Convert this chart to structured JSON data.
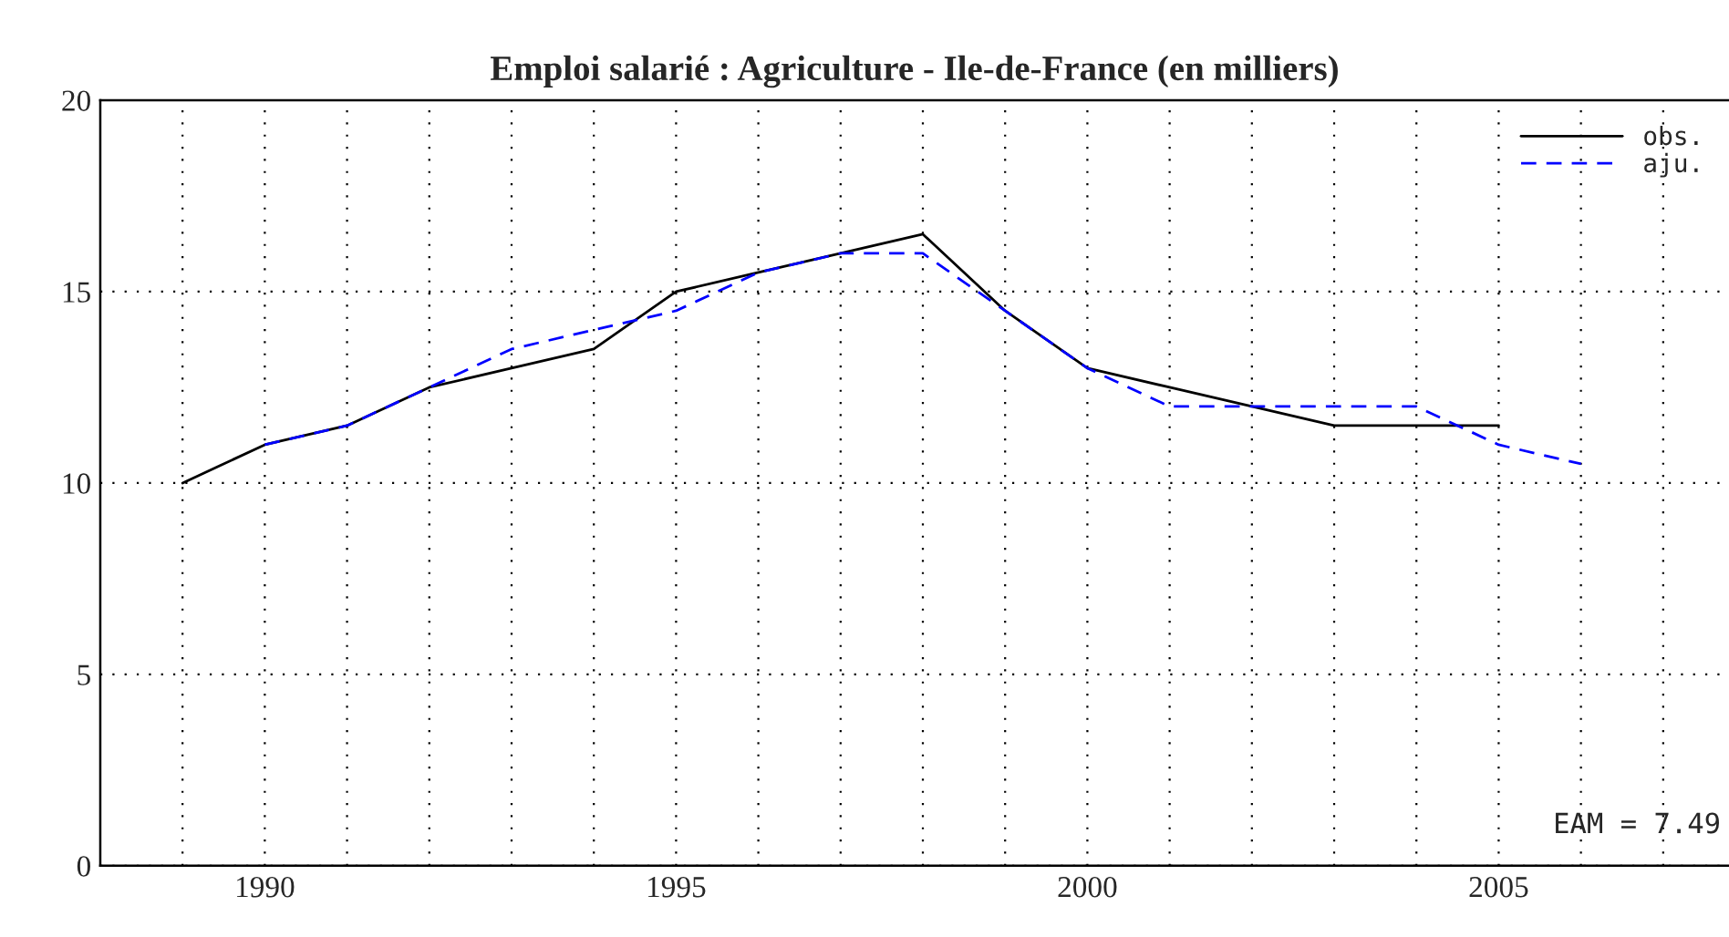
{
  "chart_data": {
    "type": "line",
    "title": "Emploi salarié : Agriculture - Ile-de-France (en milliers)",
    "series": [
      {
        "name": "obs.",
        "color": "#000000",
        "line_style": "solid",
        "x": [
          1989,
          1990,
          1991,
          1992,
          1993,
          1994,
          1995,
          1996,
          1997,
          1998,
          1999,
          2000,
          2001,
          2002,
          2003,
          2004,
          2005
        ],
        "values": [
          10,
          11,
          11.5,
          12.5,
          13,
          13.5,
          15,
          15.5,
          16,
          16.5,
          14.5,
          13,
          12.5,
          12,
          11.5,
          11.5,
          11.5
        ]
      },
      {
        "name": "aju.",
        "color": "#0000ff",
        "line_style": "dashed",
        "x": [
          1990,
          1991,
          1992,
          1993,
          1994,
          1995,
          1996,
          1997,
          1998,
          1999,
          2000,
          2001,
          2002,
          2003,
          2004,
          2005,
          2006
        ],
        "values": [
          11,
          11.5,
          12.5,
          13.5,
          14,
          14.5,
          15.5,
          16,
          16,
          14.5,
          13,
          12,
          12,
          12,
          12,
          11,
          10.5
        ]
      }
    ],
    "xlim": [
      1988,
      2007.8
    ],
    "xticks": [
      {
        "value": 1989,
        "label": null
      },
      1990,
      {
        "value": 1991,
        "label": null
      },
      {
        "value": 1992,
        "label": null
      },
      {
        "value": 1993,
        "label": null
      },
      {
        "value": 1994,
        "label": null
      },
      1995,
      {
        "value": 1996,
        "label": null
      },
      {
        "value": 1997,
        "label": null
      },
      {
        "value": 1998,
        "label": null
      },
      {
        "value": 1999,
        "label": null
      },
      2000,
      {
        "value": 2001,
        "label": null
      },
      {
        "value": 2002,
        "label": null
      },
      {
        "value": 2003,
        "label": null
      },
      {
        "value": 2004,
        "label": null
      },
      2005,
      {
        "value": 2006,
        "label": null
      },
      {
        "value": 2007,
        "label": null
      }
    ],
    "ylim": [
      0,
      20
    ],
    "yticks": [
      0,
      5,
      10,
      15,
      20
    ],
    "grid": true,
    "legend": "top right",
    "marker": "none",
    "annotations": [
      "EAM = 7.49"
    ]
  }
}
